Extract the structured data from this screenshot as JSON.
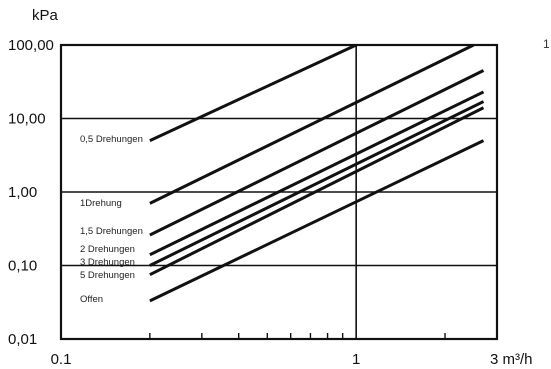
{
  "chart_data": {
    "type": "line",
    "x_scale": "log",
    "y_scale": "log",
    "xlim": [
      0.1,
      3
    ],
    "ylim": [
      0.01,
      100
    ],
    "ylabel": "kPa",
    "xlabel": "3 m³/h",
    "y_ticks": [
      "0,01",
      "0,10",
      "1,00",
      "10,00",
      "100,00"
    ],
    "x_ticks": [
      "0.1",
      "1"
    ],
    "grid": true,
    "stray_text": "1",
    "series": [
      {
        "name": "0,5 Drehungen",
        "points": [
          [
            0.2,
            5.0
          ],
          [
            1.0,
            100.0
          ]
        ]
      },
      {
        "name": "1Drehung",
        "points": [
          [
            0.2,
            0.7
          ],
          [
            2.5,
            100.0
          ]
        ]
      },
      {
        "name": "1,5 Drehungen",
        "points": [
          [
            0.2,
            0.26
          ],
          [
            2.7,
            45.0
          ]
        ]
      },
      {
        "name": "2 Drehungen",
        "points": [
          [
            0.2,
            0.14
          ],
          [
            2.7,
            23.0
          ]
        ]
      },
      {
        "name": "3 Drehungen",
        "points": [
          [
            0.2,
            0.1
          ],
          [
            2.7,
            17.0
          ]
        ]
      },
      {
        "name": "5 Drehungen",
        "points": [
          [
            0.2,
            0.075
          ],
          [
            2.7,
            14.0
          ]
        ]
      },
      {
        "name": "Offen",
        "points": [
          [
            0.2,
            0.033
          ],
          [
            2.7,
            5.0
          ]
        ]
      }
    ]
  }
}
